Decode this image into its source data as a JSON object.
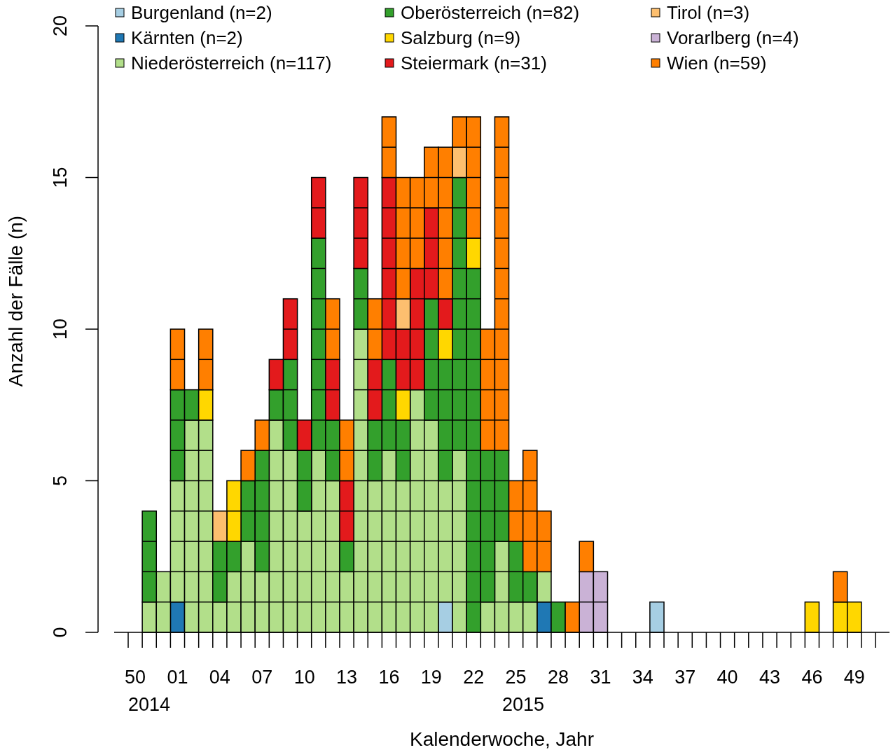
{
  "chart_data": {
    "type": "bar",
    "stacked": true,
    "xlabel": "Kalenderwoche, Jahr",
    "ylabel": "Anzahl der Fälle (n)",
    "categories": [
      "50",
      null,
      null,
      "01",
      null,
      null,
      "04",
      null,
      null,
      "07",
      null,
      null,
      "10",
      null,
      null,
      "13",
      null,
      null,
      "16",
      null,
      null,
      "19",
      null,
      null,
      "22",
      null,
      null,
      "25",
      null,
      null,
      "28",
      null,
      null,
      "31",
      null,
      null,
      "34",
      null,
      null,
      "37",
      null,
      null,
      "40",
      null,
      null,
      "43",
      null,
      null,
      "46",
      null,
      null,
      "49",
      null
    ],
    "ylim": [
      0,
      20
    ],
    "yticks": [
      0,
      5,
      10,
      15,
      20
    ],
    "legend": "top",
    "annotations": [
      "2014",
      "2015"
    ],
    "series": [
      {
        "name": "Burgenland (n=2)",
        "color": "#a6cee3",
        "values": [
          0,
          0,
          0,
          0,
          0,
          0,
          0,
          0,
          0,
          0,
          0,
          0,
          0,
          0,
          0,
          0,
          0,
          0,
          0,
          0,
          0,
          0,
          1,
          0,
          0,
          0,
          0,
          0,
          0,
          0,
          0,
          0,
          0,
          0,
          0,
          0,
          0,
          1,
          0,
          0,
          0,
          0,
          0,
          0,
          0,
          0,
          0,
          0,
          0,
          0,
          0,
          0,
          0
        ]
      },
      {
        "name": "Kärnten (n=2)",
        "color": "#1f78b4",
        "values": [
          0,
          0,
          0,
          1,
          0,
          0,
          0,
          0,
          0,
          0,
          0,
          0,
          0,
          0,
          0,
          0,
          0,
          0,
          0,
          0,
          0,
          0,
          0,
          0,
          0,
          0,
          0,
          0,
          0,
          1,
          0,
          0,
          0,
          0,
          0,
          0,
          0,
          0,
          0,
          0,
          0,
          0,
          0,
          0,
          0,
          0,
          0,
          0,
          0,
          0,
          0,
          0,
          0
        ]
      },
      {
        "name": "Niederösterreich (n=117)",
        "color": "#b2df8a",
        "values": [
          0,
          1,
          2,
          4,
          7,
          7,
          1,
          2,
          3,
          2,
          7,
          6,
          4,
          6,
          5,
          2,
          10,
          5,
          6,
          5,
          8,
          7,
          4,
          6,
          0,
          1,
          3,
          1,
          1,
          1,
          0,
          0,
          0,
          0,
          0,
          0,
          0,
          0,
          0,
          0,
          0,
          0,
          0,
          0,
          0,
          0,
          0,
          0,
          0,
          0,
          0,
          0,
          0
        ]
      },
      {
        "name": "Oberösterreich (n=82)",
        "color": "#33a02c",
        "values": [
          0,
          3,
          0,
          3,
          1,
          0,
          2,
          1,
          2,
          4,
          1,
          3,
          2,
          7,
          2,
          1,
          2,
          2,
          3,
          2,
          0,
          4,
          4,
          9,
          12,
          5,
          3,
          2,
          1,
          0,
          1,
          0,
          0,
          0,
          0,
          0,
          0,
          0,
          0,
          0,
          0,
          0,
          0,
          0,
          0,
          0,
          0,
          0,
          0,
          0,
          0,
          0,
          0
        ]
      },
      {
        "name": "Salzburg (n=9)",
        "color": "#ffd700",
        "values": [
          0,
          0,
          0,
          0,
          0,
          1,
          0,
          2,
          0,
          0,
          0,
          0,
          0,
          0,
          0,
          0,
          0,
          0,
          0,
          1,
          0,
          0,
          1,
          0,
          1,
          0,
          0,
          0,
          0,
          0,
          0,
          0,
          0,
          0,
          0,
          0,
          0,
          0,
          0,
          0,
          0,
          0,
          0,
          0,
          0,
          0,
          0,
          0,
          1,
          0,
          1,
          1,
          0
        ]
      },
      {
        "name": "Steiermark (n=31)",
        "color": "#e31a1c",
        "values": [
          0,
          0,
          0,
          0,
          0,
          0,
          0,
          0,
          0,
          0,
          1,
          2,
          1,
          2,
          2,
          2,
          3,
          2,
          6,
          2,
          4,
          3,
          1,
          0,
          0,
          0,
          0,
          0,
          0,
          0,
          0,
          0,
          0,
          0,
          0,
          0,
          0,
          0,
          0,
          0,
          0,
          0,
          0,
          0,
          0,
          0,
          0,
          0,
          0,
          0,
          0,
          0,
          0
        ]
      },
      {
        "name": "Tirol (n=3)",
        "color": "#fdbf6f",
        "values": [
          0,
          0,
          0,
          0,
          0,
          0,
          1,
          0,
          0,
          0,
          0,
          0,
          0,
          0,
          0,
          0,
          0,
          0,
          0,
          1,
          0,
          0,
          0,
          1,
          0,
          0,
          0,
          0,
          0,
          0,
          0,
          0,
          0,
          0,
          0,
          0,
          0,
          0,
          0,
          0,
          0,
          0,
          0,
          0,
          0,
          0,
          0,
          0,
          0,
          0,
          0,
          0,
          0
        ]
      },
      {
        "name": "Vorarlberg (n=4)",
        "color": "#cab2d6",
        "values": [
          0,
          0,
          0,
          0,
          0,
          0,
          0,
          0,
          0,
          0,
          0,
          0,
          0,
          0,
          0,
          0,
          0,
          0,
          0,
          0,
          0,
          0,
          0,
          0,
          0,
          0,
          0,
          0,
          0,
          0,
          0,
          0,
          2,
          2,
          0,
          0,
          0,
          0,
          0,
          0,
          0,
          0,
          0,
          0,
          0,
          0,
          0,
          0,
          0,
          0,
          0,
          0,
          0
        ]
      },
      {
        "name": "Wien (n=59)",
        "color": "#ff7f00",
        "values": [
          0,
          0,
          0,
          2,
          0,
          2,
          0,
          0,
          1,
          1,
          0,
          0,
          0,
          0,
          2,
          2,
          0,
          2,
          2,
          4,
          3,
          2,
          5,
          1,
          4,
          4,
          11,
          2,
          4,
          2,
          0,
          1,
          1,
          0,
          0,
          0,
          0,
          0,
          0,
          0,
          0,
          0,
          0,
          0,
          0,
          0,
          0,
          0,
          0,
          0,
          1,
          0,
          0
        ]
      }
    ]
  }
}
